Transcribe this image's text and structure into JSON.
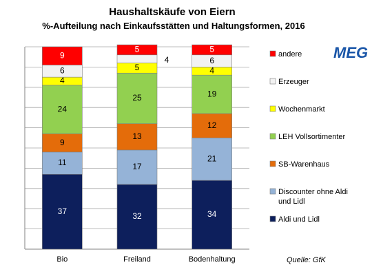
{
  "chart_data": {
    "type": "stacked-bar",
    "title": "Haushaltskäufe von Eiern",
    "subtitle": "%-Aufteilung nach Einkaufsstätten und Haltungsformen, 2016",
    "categories": [
      "Bio",
      "Freiland",
      "Bodenhaltung"
    ],
    "ylim": [
      0,
      100
    ],
    "grid": true,
    "legend_position": "right",
    "series": [
      {
        "name": "Aldi und Lidl",
        "color": "#0d1f5c",
        "label_color": "#ffffff",
        "values": [
          37,
          32,
          34
        ]
      },
      {
        "name": "Discounter ohne Aldi und Lidl",
        "color": "#95b3d7",
        "label_color": "#000000",
        "values": [
          11,
          17,
          21
        ]
      },
      {
        "name": "SB-Warenhaus",
        "color": "#e46c0a",
        "label_color": "#000000",
        "values": [
          9,
          13,
          12
        ]
      },
      {
        "name": "LEH Vollsortimenter",
        "color": "#92d050",
        "label_color": "#000000",
        "values": [
          24,
          25,
          19
        ]
      },
      {
        "name": "Wochenmarkt",
        "color": "#ffff00",
        "label_color": "#000000",
        "values": [
          4,
          5,
          4
        ]
      },
      {
        "name": "Erzeuger",
        "color": "#f2f2f2",
        "label_color": "#000000",
        "values": [
          6,
          4,
          6
        ]
      },
      {
        "name": "andere",
        "color": "#ff0000",
        "label_color": "#ffffff",
        "values": [
          9,
          5,
          5
        ]
      }
    ],
    "legend_order": [
      "andere",
      "Erzeuger",
      "Wochenmarkt",
      "LEH Vollsortimenter",
      "SB-Warenhaus",
      "Discounter ohne Aldi und Lidl",
      "Aldi und Lidl"
    ]
  },
  "source": "Quelle: GfK",
  "logo": "MEG"
}
